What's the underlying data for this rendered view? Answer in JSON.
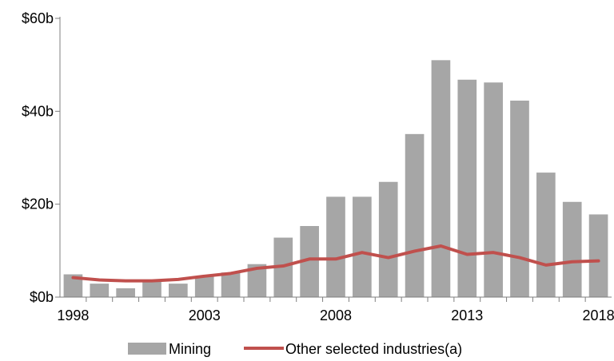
{
  "chart_data": {
    "type": "bar",
    "title": "",
    "xlabel": "",
    "ylabel": "",
    "ylim": [
      0,
      60
    ],
    "y_ticks": [
      0,
      20,
      40,
      60
    ],
    "y_tick_labels": [
      "$0b",
      "$20b",
      "$40b",
      "$60b"
    ],
    "x_tick_years": [
      1998,
      2003,
      2008,
      2013,
      2018
    ],
    "x_tick_labels": [
      "1998",
      "2003",
      "2008",
      "2013",
      "2018"
    ],
    "grid": false,
    "legend_position": "bottom",
    "x": [
      1998,
      1999,
      2000,
      2001,
      2002,
      2003,
      2004,
      2005,
      2006,
      2007,
      2008,
      2009,
      2010,
      2011,
      2012,
      2013,
      2014,
      2015,
      2016,
      2017,
      2018
    ],
    "series": [
      {
        "name": "Mining",
        "type": "bar",
        "color": "#a6a6a6",
        "values": [
          4.9,
          2.9,
          1.9,
          3.6,
          2.9,
          4.5,
          5.3,
          7.1,
          12.8,
          15.3,
          21.6,
          21.6,
          24.8,
          35.1,
          51.0,
          46.8,
          46.2,
          42.3,
          26.8,
          20.5,
          17.8
        ]
      },
      {
        "name": "Other selected industries(a)",
        "type": "line",
        "color": "#c0504d",
        "values": [
          4.2,
          3.7,
          3.5,
          3.5,
          3.8,
          4.5,
          5.1,
          6.2,
          6.7,
          8.2,
          8.2,
          9.6,
          8.5,
          9.9,
          11.0,
          9.2,
          9.6,
          8.5,
          6.9,
          7.6,
          7.8
        ]
      }
    ]
  }
}
